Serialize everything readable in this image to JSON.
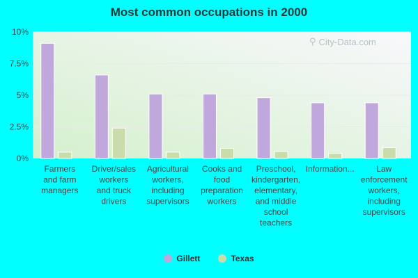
{
  "chart_data": {
    "type": "bar",
    "title": "Most common occupations in 2000",
    "categories": [
      "Farmers and farm managers",
      "Driver/sales workers and truck drivers",
      "Agricultural workers, including supervisors",
      "Cooks and food preparation workers",
      "Preschool, kindergarten, elementary, and middle school teachers",
      "Information...",
      "Law enforcement workers, including supervisors"
    ],
    "category_lines": [
      [
        "Farmers",
        "and farm",
        "managers"
      ],
      [
        "Driver/sales",
        "workers",
        "and truck",
        "drivers"
      ],
      [
        "Agricultural",
        "workers,",
        "including",
        "supervisors"
      ],
      [
        "Cooks and",
        "food",
        "preparation",
        "workers"
      ],
      [
        "Preschool,",
        "kindergarten,",
        "elementary,",
        "and middle",
        "school",
        "teachers"
      ],
      [
        "Information..."
      ],
      [
        "Law",
        "enforcement",
        "workers,",
        "including",
        "supervisors"
      ]
    ],
    "series": [
      {
        "name": "Gillett",
        "color": "#c0a8dc",
        "values": [
          9.1,
          6.6,
          5.1,
          5.1,
          4.8,
          4.4,
          4.4
        ]
      },
      {
        "name": "Texas",
        "color": "#c9dcaa",
        "values": [
          0.5,
          2.4,
          0.5,
          0.8,
          0.55,
          0.4,
          0.85
        ]
      }
    ],
    "ylim": [
      0,
      10
    ],
    "yticks": [
      0,
      2.5,
      5,
      7.5,
      10
    ],
    "ytick_labels": [
      "0%",
      "2.5%",
      "5%",
      "7.5%",
      "10%"
    ],
    "legend_position": "bottom",
    "grid": true
  },
  "watermark": {
    "text": "City-Data.com",
    "icon": "search-icon"
  }
}
